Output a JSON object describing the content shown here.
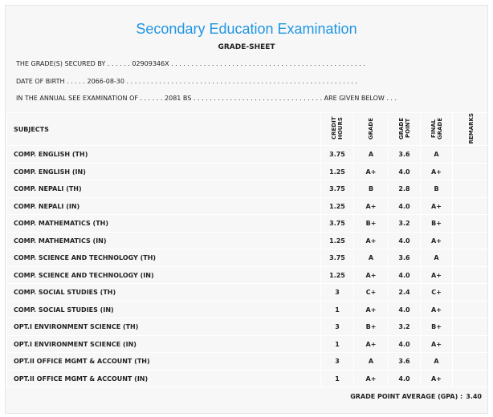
{
  "title": "Secondary Education Examination",
  "subtitle": "GRADE-SHEET",
  "info": {
    "secured_by": "THE GRADE(S) SECURED BY . . . . . . 02909346X . . . . . . . . . . . . . . . . . . . . . . . . . . . . . . . . . . . . . . . . . . . . . . . .",
    "dob": "DATE OF BIRTH . . . . . 2066-08-30 . . . . . . . . . . . . . . . . . . . . . . . . . . . . . . . . . . . . . . . . . . . . . . . . . . . . . . . . .",
    "exam": "IN THE ANNUAL SEE EXAMINATION OF . . . . . . 2081 BS . . . . . . . . . . . . . . . . . . . . . . . . . . . . . . . . ARE GIVEN BELOW . . ."
  },
  "headers": [
    "SUBJECTS",
    "CREDIT HOURS",
    "GRADE",
    "GRADE POINT",
    "FINAL GRADE",
    "REMARKS"
  ],
  "rows": [
    [
      "COMP. ENGLISH (TH)",
      "3.75",
      "A",
      "3.6",
      "A"
    ],
    [
      "COMP. ENGLISH (IN)",
      "1.25",
      "A+",
      "4.0",
      "A+"
    ],
    [
      "COMP. NEPALI (TH)",
      "3.75",
      "B",
      "2.8",
      "B"
    ],
    [
      "COMP. NEPALI (IN)",
      "1.25",
      "A+",
      "4.0",
      "A+"
    ],
    [
      "COMP. MATHEMATICS (TH)",
      "3.75",
      "B+",
      "3.2",
      "B+"
    ],
    [
      "COMP. MATHEMATICS (IN)",
      "1.25",
      "A+",
      "4.0",
      "A+"
    ],
    [
      "COMP. SCIENCE AND TECHNOLOGY (TH)",
      "3.75",
      "A",
      "3.6",
      "A"
    ],
    [
      "COMP. SCIENCE AND TECHNOLOGY (IN)",
      "1.25",
      "A+",
      "4.0",
      "A+"
    ],
    [
      "COMP. SOCIAL STUDIES (TH)",
      "3",
      "C+",
      "2.4",
      "C+"
    ],
    [
      "COMP. SOCIAL STUDIES (IN)",
      "1",
      "A+",
      "4.0",
      "A+"
    ],
    [
      "OPT.I ENVIRONMENT SCIENCE (TH)",
      "3",
      "B+",
      "3.2",
      "B+"
    ],
    [
      "OPT.I ENVIRONMENT SCIENCE (IN)",
      "1",
      "A+",
      "4.0",
      "A+"
    ],
    [
      "OPT.II OFFICE MGMT & ACCOUNT (TH)",
      "3",
      "A",
      "3.6",
      "A"
    ],
    [
      "OPT.II OFFICE MGMT & ACCOUNT (IN)",
      "1",
      "A+",
      "4.0",
      "A+"
    ]
  ],
  "gpa_label": "GRADE POINT AVERAGE (GPA) :",
  "gpa_value": "3.40"
}
